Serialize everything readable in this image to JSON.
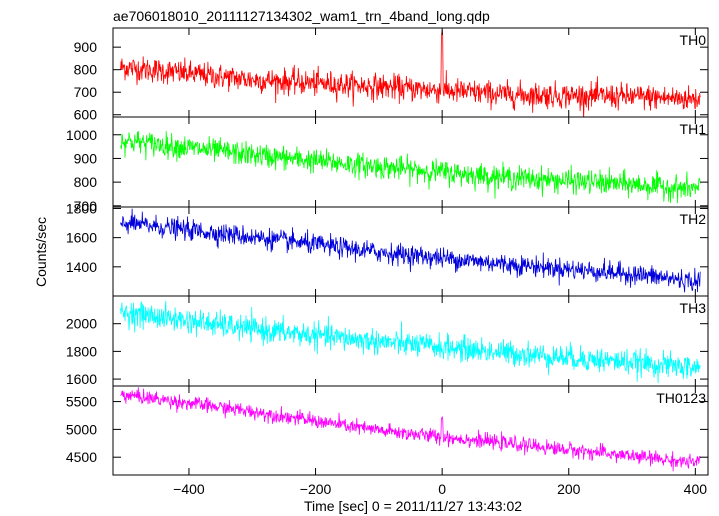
{
  "chart_data": {
    "type": "line",
    "title": "ae706018010_20111127134302_wam1_trn_4band_long.qdp",
    "xlabel": "Time [sec] 0 = 2011/11/27 13:43:02",
    "ylabel": "Counts/sec",
    "xlim": [
      -520,
      420
    ],
    "x_ticks": [
      -400,
      -200,
      0,
      200,
      400
    ],
    "x_tick_labels": [
      "−400",
      "−200",
      "0",
      "200",
      "400"
    ],
    "grid": false,
    "panels": [
      {
        "name": "TH0",
        "color": "#ff0000",
        "ylim": [
          590,
          985
        ],
        "y_ticks": [
          600,
          700,
          800,
          900
        ],
        "series_trend": [
          {
            "x": -500,
            "y": 810
          },
          {
            "x": -300,
            "y": 755
          },
          {
            "x": -100,
            "y": 725
          },
          {
            "x": 100,
            "y": 690
          },
          {
            "x": 300,
            "y": 680
          },
          {
            "x": 400,
            "y": 670
          }
        ],
        "noise": 28,
        "spike": {
          "x": 0,
          "y": 985
        }
      },
      {
        "name": "TH1",
        "color": "#00ff00",
        "ylim": [
          695,
          1075
        ],
        "y_ticks": [
          700,
          800,
          900,
          1000
        ],
        "series_trend": [
          {
            "x": -500,
            "y": 975
          },
          {
            "x": -300,
            "y": 915
          },
          {
            "x": -100,
            "y": 865
          },
          {
            "x": 100,
            "y": 820
          },
          {
            "x": 300,
            "y": 790
          },
          {
            "x": 400,
            "y": 770
          }
        ],
        "noise": 25,
        "spike": null
      },
      {
        "name": "TH2",
        "color": "#0000dd",
        "ylim": [
          1200,
          1810
        ],
        "y_ticks": [
          1400,
          1600,
          1800
        ],
        "series_trend": [
          {
            "x": -500,
            "y": 1700
          },
          {
            "x": -300,
            "y": 1605
          },
          {
            "x": -100,
            "y": 1500
          },
          {
            "x": 100,
            "y": 1420
          },
          {
            "x": 300,
            "y": 1350
          },
          {
            "x": 400,
            "y": 1300
          }
        ],
        "noise": 35,
        "spike": null
      },
      {
        "name": "TH3",
        "color": "#00ffff",
        "ylim": [
          1550,
          2200
        ],
        "y_ticks": [
          1600,
          1800,
          2000
        ],
        "series_trend": [
          {
            "x": -500,
            "y": 2080
          },
          {
            "x": -300,
            "y": 1960
          },
          {
            "x": -100,
            "y": 1870
          },
          {
            "x": 100,
            "y": 1790
          },
          {
            "x": 300,
            "y": 1720
          },
          {
            "x": 400,
            "y": 1680
          }
        ],
        "noise": 45,
        "spike": null
      },
      {
        "name": "TH0123",
        "color": "#ff00ff",
        "ylim": [
          4180,
          5780
        ],
        "y_ticks": [
          4500,
          5000,
          5500
        ],
        "series_trend": [
          {
            "x": -500,
            "y": 5620
          },
          {
            "x": -300,
            "y": 5320
          },
          {
            "x": -100,
            "y": 4980
          },
          {
            "x": 100,
            "y": 4750
          },
          {
            "x": 300,
            "y": 4520
          },
          {
            "x": 400,
            "y": 4400
          }
        ],
        "noise": 65,
        "spike": {
          "x": 0,
          "y": 5230
        }
      }
    ]
  }
}
